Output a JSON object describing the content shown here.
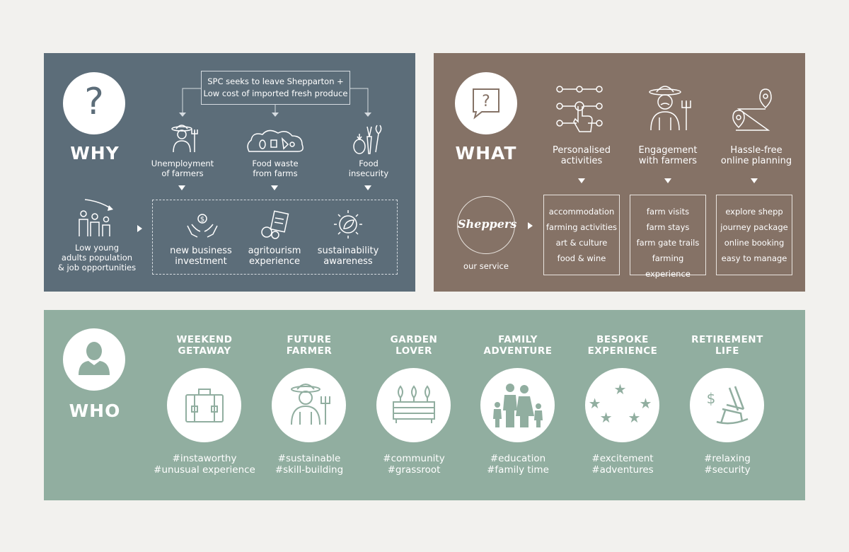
{
  "why": {
    "label": "WHY",
    "top_box": [
      "SPC seeks to leave Shepparton +",
      "Low cost of imported fresh produce"
    ],
    "causes": [
      {
        "line1": "Unemployment",
        "line2": "of farmers"
      },
      {
        "line1": "Food waste",
        "line2": "from farms"
      },
      {
        "line1": "Food",
        "line2": "insecurity"
      }
    ],
    "population": [
      "Low young",
      "adults population",
      "& job opportunities"
    ],
    "outcomes": [
      {
        "line1": "new business",
        "line2": "investment"
      },
      {
        "line1": "agritourism",
        "line2": "experience"
      },
      {
        "line1": "sustainability",
        "line2": "awareness"
      }
    ]
  },
  "what": {
    "label": "WHAT",
    "features": [
      {
        "line1": "Personalised",
        "line2": "activities"
      },
      {
        "line1": "Engagement",
        "line2": "with farmers"
      },
      {
        "line1": "Hassle-free",
        "line2": "online planning"
      }
    ],
    "brand": "Sheppers",
    "service_caption": "our service",
    "lists": [
      [
        "accommodation",
        "farming activities",
        "art & culture",
        "food & wine"
      ],
      [
        "farm visits",
        "farm stays",
        "farm gate trails",
        "farming experience"
      ],
      [
        "explore shepp",
        "journey package",
        "online booking",
        "easy to manage"
      ]
    ]
  },
  "who": {
    "label": "WHO",
    "personas": [
      {
        "title1": "WEEKEND",
        "title2": "GETAWAY",
        "tag1": "#instaworthy",
        "tag2": "#unusual experience",
        "icon": "suitcase-icon"
      },
      {
        "title1": "FUTURE",
        "title2": "FARMER",
        "tag1": "#sustainable",
        "tag2": "#skill-building",
        "icon": "farmer-icon"
      },
      {
        "title1": "GARDEN",
        "title2": "LOVER",
        "tag1": "#community",
        "tag2": "#grassroot",
        "icon": "garden-bed-icon"
      },
      {
        "title1": "FAMILY",
        "title2": "ADVENTURE",
        "tag1": "#education",
        "tag2": "#family time",
        "icon": "family-icon"
      },
      {
        "title1": "BESPOKE",
        "title2": "EXPERIENCE",
        "tag1": "#excitement",
        "tag2": "#adventures",
        "icon": "stars-icon"
      },
      {
        "title1": "RETIREMENT",
        "title2": "LIFE",
        "tag1": "#relaxing",
        "tag2": "#security",
        "icon": "rocking-chair-icon"
      }
    ]
  },
  "colors": {
    "why_bg": "#5c6d79",
    "what_bg": "#857266",
    "who_bg": "#91aea0",
    "page_bg": "#f2f1ee"
  }
}
